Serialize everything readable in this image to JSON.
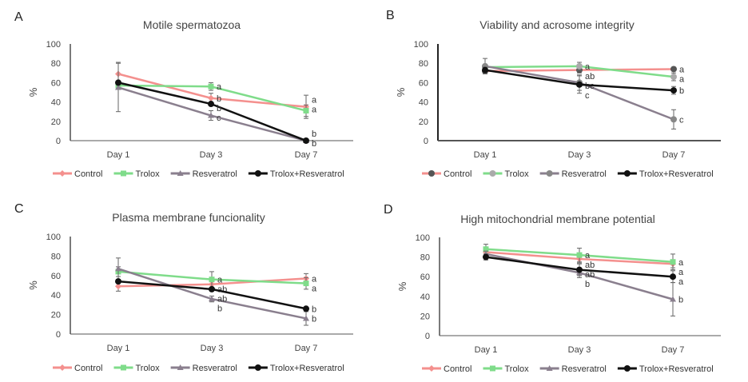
{
  "chart_data": [
    {
      "type": "line",
      "panel": "A",
      "title": "Motile spermatozoa",
      "xlabel": "",
      "ylabel": "%",
      "ylim": [
        0,
        100
      ],
      "yticks": [
        0,
        20,
        40,
        60,
        80,
        100
      ],
      "categories": [
        "Day 1",
        "Day 3",
        "Day 7"
      ],
      "legend": "bottom",
      "grid": false,
      "markers": [
        "diamond",
        "square",
        "triangle",
        "circle"
      ],
      "series": [
        {
          "name": "Control",
          "color": "#f4908e",
          "values": [
            69,
            44,
            35
          ],
          "err": [
            12,
            5,
            12
          ],
          "letters": [
            "",
            "b",
            "a"
          ]
        },
        {
          "name": "Trolox",
          "color": "#7fdc8a",
          "values": [
            57,
            56,
            31
          ],
          "err": [
            4,
            4,
            6
          ],
          "letters": [
            "",
            "a",
            "a"
          ]
        },
        {
          "name": "Resveratrol",
          "color": "#8a7f8e",
          "values": [
            55,
            26,
            0
          ],
          "err": [
            25,
            5,
            1
          ],
          "letters": [
            "",
            "c",
            "b"
          ]
        },
        {
          "name": "Trolox+Resveratrol",
          "color": "#111111",
          "values": [
            60,
            38,
            0
          ],
          "err": [
            0,
            0,
            0
          ],
          "letters": [
            "",
            "b",
            "b"
          ]
        }
      ]
    },
    {
      "type": "line",
      "panel": "B",
      "title": "Viability and acrosome integrity",
      "xlabel": "",
      "ylabel": "%",
      "ylim": [
        0,
        100
      ],
      "yticks": [
        0,
        20,
        40,
        60,
        80,
        100
      ],
      "categories": [
        "Day 1",
        "Day 3",
        "Day 7"
      ],
      "legend": "bottom",
      "grid": false,
      "markers": [
        "circle",
        "circle",
        "circle",
        "circle"
      ],
      "marker_colors": [
        "#555555",
        "#aaaaaa",
        "#888888",
        "#111111"
      ],
      "series": [
        {
          "name": "Control",
          "color": "#f4908e",
          "values": [
            72,
            73,
            74
          ],
          "err": [
            3,
            3,
            2
          ],
          "letters": [
            "",
            "ab",
            "a"
          ]
        },
        {
          "name": "Trolox",
          "color": "#7fdc8a",
          "values": [
            76,
            77,
            66
          ],
          "err": [
            3,
            4,
            4
          ],
          "letters": [
            "",
            "a",
            "a"
          ]
        },
        {
          "name": "Resveratrol",
          "color": "#8a7f8e",
          "values": [
            77,
            60,
            22
          ],
          "err": [
            8,
            8,
            10
          ],
          "letters": [
            "",
            "bc",
            "c"
          ]
        },
        {
          "name": "Trolox+Resveratrol",
          "color": "#111111",
          "values": [
            73,
            58,
            52
          ],
          "err": [
            3,
            9,
            4
          ],
          "letters": [
            "",
            "c",
            "b"
          ]
        }
      ]
    },
    {
      "type": "line",
      "panel": "C",
      "title": "Plasma membrane funcionality",
      "xlabel": "",
      "ylabel": "%",
      "ylim": [
        0,
        100
      ],
      "yticks": [
        0,
        20,
        40,
        60,
        80,
        100
      ],
      "categories": [
        "Day 1",
        "Day 3",
        "Day 7"
      ],
      "legend": "bottom",
      "grid": false,
      "markers": [
        "diamond",
        "square",
        "triangle",
        "circle"
      ],
      "series": [
        {
          "name": "Control",
          "color": "#f4908e",
          "values": [
            49,
            51,
            57
          ],
          "err": [
            5,
            3,
            5
          ],
          "letters": [
            "",
            "ab",
            "a"
          ]
        },
        {
          "name": "Trolox",
          "color": "#7fdc8a",
          "values": [
            64,
            56,
            52
          ],
          "err": [
            5,
            8,
            6
          ],
          "letters": [
            "",
            "a",
            "a"
          ]
        },
        {
          "name": "Resveratrol",
          "color": "#8a7f8e",
          "values": [
            67,
            36,
            16
          ],
          "err": [
            11,
            3,
            7
          ],
          "letters": [
            "",
            "b",
            "b"
          ]
        },
        {
          "name": "Trolox+Resveratrol",
          "color": "#111111",
          "values": [
            54,
            46,
            26
          ],
          "err": [
            0,
            0,
            0
          ],
          "letters": [
            "",
            "ab",
            "b"
          ]
        }
      ]
    },
    {
      "type": "line",
      "panel": "D",
      "title": "High mitochondrial membrane potential",
      "xlabel": "",
      "ylabel": "%",
      "ylim": [
        0,
        100
      ],
      "yticks": [
        0,
        20,
        40,
        60,
        80,
        100
      ],
      "categories": [
        "Day 1",
        "Day 3",
        "Day 7"
      ],
      "legend": "bottom",
      "grid": false,
      "markers": [
        "diamond",
        "square",
        "triangle",
        "circle"
      ],
      "series": [
        {
          "name": "Control",
          "color": "#f4908e",
          "values": [
            85,
            78,
            73
          ],
          "err": [
            3,
            4,
            4
          ],
          "letters": [
            "",
            "ab",
            "a"
          ]
        },
        {
          "name": "Trolox",
          "color": "#7fdc8a",
          "values": [
            88,
            82,
            75
          ],
          "err": [
            5,
            7,
            8
          ],
          "letters": [
            "",
            "a",
            "a"
          ]
        },
        {
          "name": "Resveratrol",
          "color": "#8a7f8e",
          "values": [
            83,
            64,
            37
          ],
          "err": [
            3,
            5,
            17
          ],
          "letters": [
            "",
            "b",
            "b"
          ]
        },
        {
          "name": "Trolox+Resveratrol",
          "color": "#111111",
          "values": [
            80,
            67,
            60
          ],
          "err": [
            3,
            6,
            6
          ],
          "letters": [
            "",
            "ab",
            "a"
          ]
        }
      ]
    }
  ]
}
